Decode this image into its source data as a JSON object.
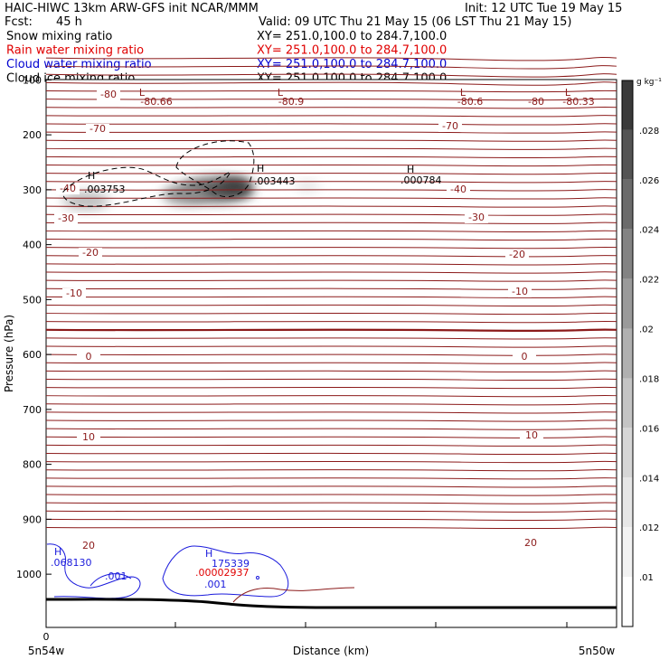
{
  "header": {
    "title": "HAIC-HIWC 13km ARW-GFS init    NCAR/MMM",
    "init": "Init: 12 UTC Tue 19 May 15",
    "fcst_label": "Fcst:",
    "fcst_value": "45 h",
    "valid": "Valid: 09 UTC Thu 21 May 15 (06 LST Thu 21 May 15)"
  },
  "fields": [
    {
      "label": "Snow mixing ratio",
      "xy": "XY= 251.0,100.0 to 284.7,100.0",
      "color": "#000000"
    },
    {
      "label": "Rain water mixing ratio",
      "xy": "XY= 251.0,100.0 to 284.7,100.0",
      "color": "#e00000"
    },
    {
      "label": "Cloud water mixing ratio",
      "xy": "XY= 251.0,100.0 to 284.7,100.0",
      "color": "#0000d0"
    },
    {
      "label": "Cloud ice mixing ratio",
      "xy": "XY= 251.0,100.0 to 284.7,100.0",
      "color": "#000000"
    }
  ],
  "chart_data": {
    "type": "contour",
    "xlabel": "Distance (km)",
    "ylabel": "Pressure (hPa)",
    "x_left_label": "5n54w",
    "x_right_label": "5n50w",
    "x_origin_label": "0",
    "ylim": [
      1050,
      50
    ],
    "y_ticks": [
      100,
      200,
      300,
      400,
      500,
      600,
      700,
      800,
      900,
      1000
    ],
    "colorbar": {
      "unit": "g kg⁻¹",
      "ticks": [
        ".01",
        ".012",
        ".014",
        ".016",
        ".018",
        ".02",
        ".022",
        ".024",
        ".026",
        ".028"
      ],
      "colors": [
        "#ffffff",
        "#f2f2f2",
        "#e6e6e6",
        "#d6d6d6",
        "#c4c4c4",
        "#b0b0b0",
        "#9a9a9a",
        "#838383",
        "#6b6b6b",
        "#545454",
        "#3a3a3a"
      ]
    },
    "temperature_labels": [
      "-80",
      "-70",
      "-40",
      "-30",
      "-20",
      "-10",
      "0",
      "10",
      "20"
    ],
    "extrema": {
      "lows": [
        "L",
        "L",
        "L",
        "L"
      ],
      "low_values": [
        "-80.66",
        "-80.9",
        "-80.6",
        "-80.33"
      ],
      "snow_highs": [
        ".003753",
        ".003443",
        ".000784"
      ],
      "cloud_water_highs": [
        ".068130",
        "175339"
      ],
      "cloud_water_contours": [
        ".001",
        ".001"
      ],
      "rain_high": ".00002937"
    },
    "colors": {
      "temperature": "#8b1a1a",
      "cloud_water": "#1a1adc",
      "rain": "#e00000",
      "snow": "#000000"
    }
  }
}
